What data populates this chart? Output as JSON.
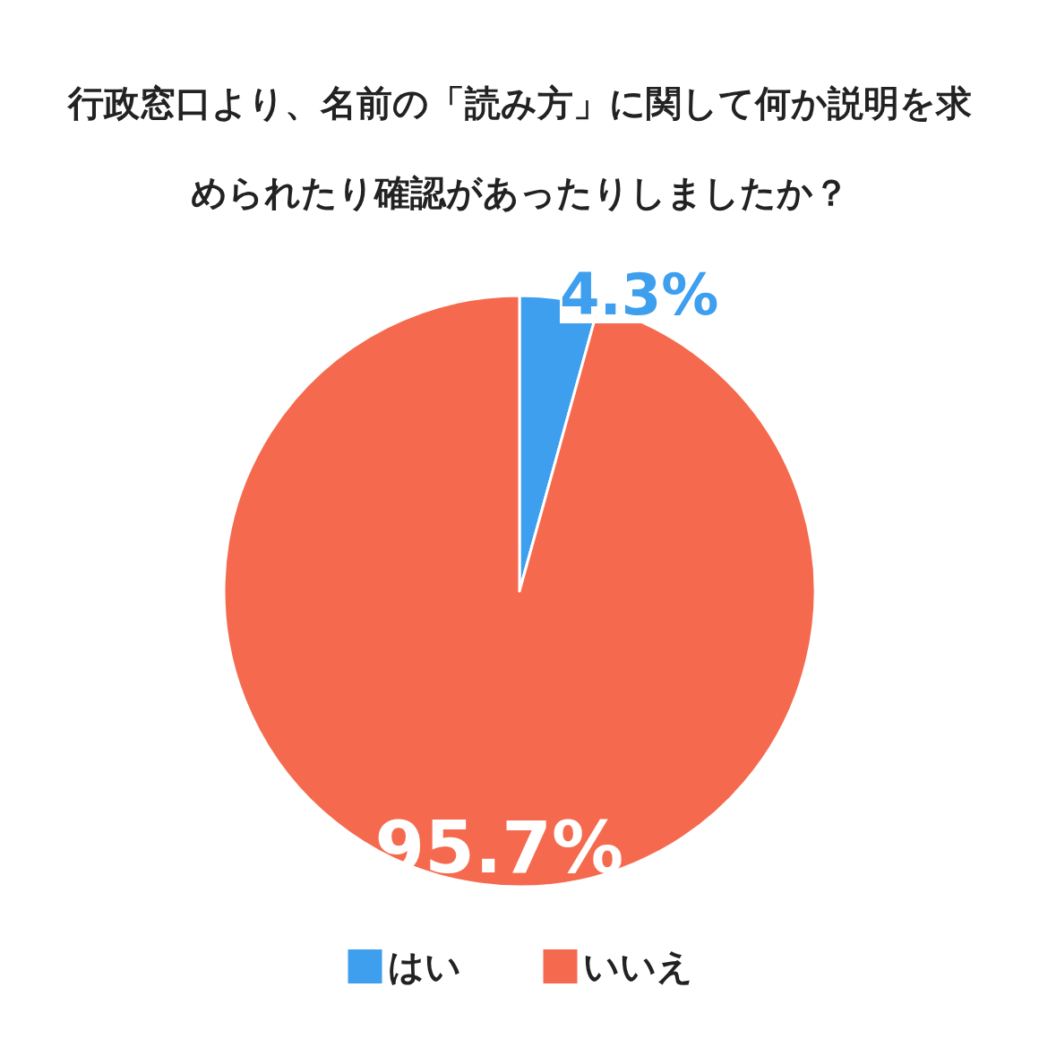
{
  "chart_data": {
    "type": "pie",
    "title": "行政窓口より、名前の「読み方」に関して何か説明を求められたり確認があったりしましたか？",
    "categories": [
      "はい",
      "いいえ"
    ],
    "values": [
      4.3,
      95.7
    ],
    "colors": [
      "#3d9fee",
      "#f56a4e"
    ],
    "value_labels": [
      "4.3%",
      "95.7%"
    ],
    "legend": "bottom"
  }
}
